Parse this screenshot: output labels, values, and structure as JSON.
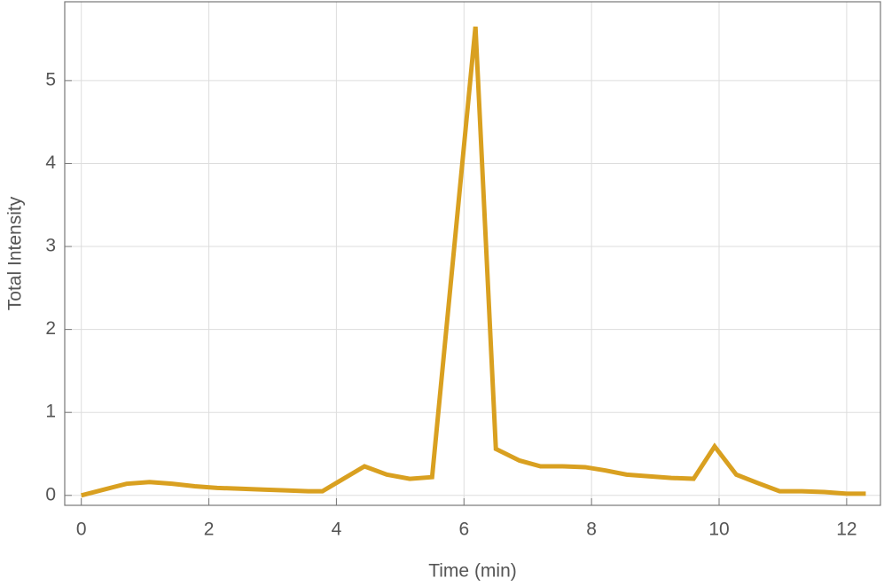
{
  "chart_data": {
    "type": "line",
    "xlabel": "Time (min)",
    "ylabel": "Total Intensity",
    "x": [
      0,
      0.71,
      1.07,
      1.42,
      1.78,
      2.13,
      2.49,
      2.85,
      3.2,
      3.56,
      3.78,
      4.44,
      4.79,
      5.15,
      5.5,
      6.18,
      6.5,
      6.87,
      7.2,
      7.55,
      7.9,
      8.22,
      8.55,
      8.9,
      9.25,
      9.6,
      9.93,
      10.27,
      10.6,
      10.95,
      11.3,
      11.65,
      12.0,
      12.3
    ],
    "series": [
      {
        "color": "#d9a020",
        "values": [
          0,
          0.14,
          0.16,
          0.14,
          0.11,
          0.09,
          0.08,
          0.07,
          0.06,
          0.05,
          0.05,
          0.35,
          0.25,
          0.2,
          0.22,
          5.65,
          0.56,
          0.42,
          0.35,
          0.35,
          0.34,
          0.3,
          0.25,
          0.23,
          0.21,
          0.2,
          0.59,
          0.25,
          0.15,
          0.05,
          0.05,
          0.04,
          0.02,
          0.02
        ]
      }
    ],
    "xlim": [
      -0.26,
      12.53
    ],
    "ylim": [
      -0.12,
      5.95
    ],
    "xticks": [
      0,
      2,
      4,
      6,
      8,
      10,
      12
    ],
    "yticks": [
      0,
      1,
      2,
      3,
      4,
      5
    ],
    "grid": true
  }
}
